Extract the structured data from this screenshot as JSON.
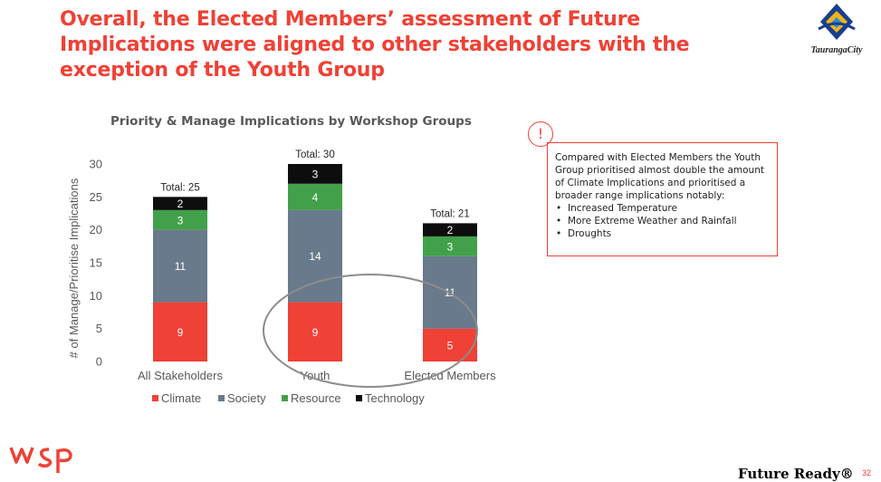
{
  "slide": {
    "title": "Overall, the Elected Members’ assessment of Future Implications were aligned to other stakeholders with the exception of the Youth Group",
    "logo_text": "TaurangaCity",
    "page_number": "32",
    "footer_tagline": "Future Ready®"
  },
  "note": {
    "text": "Compared with Elected Members the Youth Group prioritised almost double the amount of Climate Implications and prioritised a broader range implications notably:",
    "bullets": [
      "Increased Temperature",
      "More Extreme Weather and Rainfall",
      "Droughts"
    ]
  },
  "chart_data": {
    "type": "bar",
    "stacked": true,
    "title": "Priority & Manage Implications by Workshop Groups",
    "ylabel": "# of Manage/Prioritise Implications",
    "xlabel": "",
    "ylim": [
      0,
      30
    ],
    "yticks": [
      0,
      5,
      10,
      15,
      20,
      25,
      30
    ],
    "categories": [
      "All Stakeholders",
      "Youth",
      "Elected Members"
    ],
    "series": [
      {
        "name": "Climate",
        "color": "#ef4135",
        "values": [
          9,
          9,
          5
        ]
      },
      {
        "name": "Society",
        "color": "#687a8c",
        "values": [
          11,
          14,
          11
        ]
      },
      {
        "name": "Resource",
        "color": "#42a04a",
        "values": [
          3,
          4,
          3
        ]
      },
      {
        "name": "Technology",
        "color": "#0d0d0d",
        "values": [
          2,
          3,
          2
        ]
      }
    ],
    "totals": [
      "Total: 25",
      "Total: 30",
      "Total: 21"
    ],
    "legend_position": "bottom",
    "grid": false
  }
}
